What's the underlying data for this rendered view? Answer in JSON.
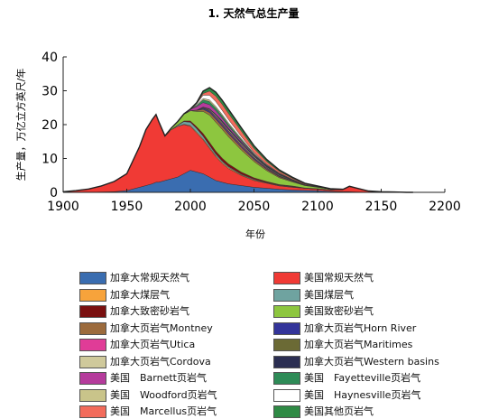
{
  "chart_data": {
    "type": "area",
    "title": "1. 天然气总生产量",
    "xlabel": "年份",
    "ylabel": "生产量，万亿立方英尺/年",
    "xlim": [
      1900,
      2200
    ],
    "ylim": [
      0,
      40
    ],
    "xticks": [
      "1900",
      "1950",
      "2000",
      "2050",
      "2100",
      "2150",
      "2200"
    ],
    "yticks": [
      "0",
      "10",
      "20",
      "30",
      "40"
    ],
    "grid": false,
    "stacked": true,
    "legend_position": "bottom",
    "x": [
      1900,
      1910,
      1920,
      1930,
      1940,
      1950,
      1960,
      1965,
      1970,
      1973,
      1975,
      1980,
      1985,
      1990,
      1995,
      2000,
      2005,
      2010,
      2015,
      2020,
      2025,
      2030,
      2040,
      2050,
      2060,
      2070,
      2080,
      2090,
      2100,
      2110,
      2120,
      2125,
      2130,
      2140,
      2150,
      2160,
      2170,
      2175
    ],
    "series": [
      {
        "name": "加拿大常规天然气",
        "color": "#3a6db0",
        "values": [
          0,
          0,
          0,
          0.1,
          0.2,
          0.5,
          1.5,
          2.0,
          2.5,
          3.0,
          3.0,
          3.5,
          4.0,
          4.5,
          5.5,
          6.5,
          6.0,
          5.5,
          4.5,
          3.5,
          3.0,
          2.5,
          2.0,
          1.5,
          1.2,
          0.9,
          0.7,
          0.6,
          0.5,
          0.3,
          0.2,
          0.2,
          0.1,
          0,
          0,
          0,
          0,
          0
        ]
      },
      {
        "name": "美国常规天然气",
        "color": "#f03a35",
        "values": [
          0.2,
          0.5,
          1.0,
          1.8,
          3.0,
          5.0,
          12.0,
          16.5,
          19.0,
          20.0,
          18.0,
          13.0,
          14.5,
          15.0,
          14.5,
          13.0,
          11.5,
          10.0,
          8.5,
          7.0,
          5.5,
          4.5,
          3.0,
          2.0,
          1.5,
          1.0,
          0.8,
          0.6,
          0.5,
          0.4,
          0.6,
          1.5,
          1.2,
          0.4,
          0.2,
          0.1,
          0,
          0
        ]
      },
      {
        "name": "加拿大煤层气",
        "color": "#f7a33b",
        "values": [
          0,
          0,
          0,
          0,
          0,
          0,
          0,
          0,
          0,
          0,
          0,
          0,
          0,
          0,
          0.1,
          0.2,
          0.3,
          0.3,
          0.3,
          0.3,
          0.3,
          0.3,
          0.2,
          0.2,
          0.1,
          0.1,
          0.1,
          0,
          0,
          0,
          0,
          0,
          0,
          0,
          0,
          0,
          0,
          0
        ]
      },
      {
        "name": "美国煤层气",
        "color": "#6fa3a0",
        "values": [
          0,
          0,
          0,
          0,
          0,
          0,
          0,
          0,
          0,
          0,
          0,
          0,
          0,
          0.3,
          0.8,
          1.0,
          1.0,
          0.8,
          0.6,
          0.5,
          0.4,
          0.3,
          0.2,
          0.2,
          0.1,
          0.1,
          0.1,
          0,
          0,
          0,
          0,
          0,
          0,
          0,
          0,
          0,
          0,
          0
        ]
      },
      {
        "name": "加拿大致密砂岩气",
        "color": "#7a1010",
        "values": [
          0,
          0,
          0,
          0,
          0,
          0,
          0,
          0,
          0,
          0,
          0,
          0,
          0,
          0.1,
          0.2,
          0.4,
          0.6,
          0.8,
          0.9,
          0.9,
          0.9,
          0.8,
          0.6,
          0.4,
          0.3,
          0.2,
          0.2,
          0.1,
          0.1,
          0.1,
          0,
          0,
          0,
          0,
          0,
          0,
          0,
          0
        ]
      },
      {
        "name": "美国致密砂岩气",
        "color": "#8dc63f",
        "values": [
          0,
          0,
          0,
          0,
          0,
          0,
          0,
          0,
          0,
          0,
          0,
          0.2,
          0.5,
          1.0,
          2.0,
          3.0,
          4.5,
          6.5,
          8.0,
          8.5,
          8.5,
          8.0,
          6.5,
          4.8,
          3.2,
          2.0,
          1.2,
          0.7,
          0.4,
          0.2,
          0.1,
          0.1,
          0,
          0,
          0,
          0,
          0,
          0
        ]
      },
      {
        "name": "加拿大页岩气Montney",
        "color": "#9c6b3d",
        "values": [
          0,
          0,
          0,
          0,
          0,
          0,
          0,
          0,
          0,
          0,
          0,
          0,
          0,
          0,
          0,
          0,
          0.3,
          0.6,
          0.8,
          0.9,
          0.9,
          0.9,
          0.8,
          0.6,
          0.4,
          0.3,
          0.2,
          0.1,
          0.1,
          0,
          0,
          0,
          0,
          0,
          0,
          0,
          0,
          0
        ]
      },
      {
        "name": "加拿大页岩气Horn River",
        "color": "#33349a",
        "values": [
          0,
          0,
          0,
          0,
          0,
          0,
          0,
          0,
          0,
          0,
          0,
          0,
          0,
          0,
          0,
          0,
          0.1,
          0.3,
          0.4,
          0.4,
          0.4,
          0.4,
          0.3,
          0.3,
          0.2,
          0.1,
          0.1,
          0,
          0,
          0,
          0,
          0,
          0,
          0,
          0,
          0,
          0,
          0
        ]
      },
      {
        "name": "加拿大页岩气Utica",
        "color": "#e03c97",
        "values": [
          0,
          0,
          0,
          0,
          0,
          0,
          0,
          0,
          0,
          0,
          0,
          0,
          0,
          0,
          0,
          0,
          0,
          0.1,
          0.2,
          0.3,
          0.3,
          0.3,
          0.3,
          0.2,
          0.2,
          0.1,
          0.1,
          0,
          0,
          0,
          0,
          0,
          0,
          0,
          0,
          0,
          0,
          0
        ]
      },
      {
        "name": "加拿大页岩气Maritimes",
        "color": "#6b6a35",
        "values": [
          0,
          0,
          0,
          0,
          0,
          0,
          0,
          0,
          0,
          0,
          0,
          0,
          0,
          0,
          0,
          0,
          0,
          0.1,
          0.1,
          0.2,
          0.2,
          0.2,
          0.2,
          0.1,
          0.1,
          0.1,
          0,
          0,
          0,
          0,
          0,
          0,
          0,
          0,
          0,
          0,
          0,
          0
        ]
      },
      {
        "name": "加拿大页岩气Cordova",
        "color": "#cfc99b",
        "values": [
          0,
          0,
          0,
          0,
          0,
          0,
          0,
          0,
          0,
          0,
          0,
          0,
          0,
          0,
          0,
          0,
          0,
          0.1,
          0.2,
          0.3,
          0.3,
          0.3,
          0.3,
          0.3,
          0.2,
          0.2,
          0.1,
          0.1,
          0,
          0,
          0,
          0,
          0,
          0,
          0,
          0,
          0,
          0
        ]
      },
      {
        "name": "加拿大页岩气Western basins",
        "color": "#2b2e52",
        "values": [
          0,
          0,
          0,
          0,
          0,
          0,
          0,
          0,
          0,
          0,
          0,
          0,
          0,
          0,
          0,
          0,
          0,
          0.1,
          0.2,
          0.3,
          0.4,
          0.4,
          0.4,
          0.3,
          0.3,
          0.2,
          0.2,
          0.1,
          0.1,
          0,
          0,
          0,
          0,
          0,
          0,
          0,
          0,
          0
        ]
      },
      {
        "name": "美国　Barnett页岩气",
        "color": "#b53b9c",
        "values": [
          0,
          0,
          0,
          0,
          0,
          0,
          0,
          0,
          0,
          0,
          0,
          0,
          0,
          0,
          0.1,
          0.4,
          1.0,
          1.3,
          1.2,
          1.0,
          0.8,
          0.6,
          0.4,
          0.2,
          0.1,
          0.1,
          0,
          0,
          0,
          0,
          0,
          0,
          0,
          0,
          0,
          0,
          0,
          0
        ]
      },
      {
        "name": "美国　Fayetteville页岩气",
        "color": "#2e8b57",
        "values": [
          0,
          0,
          0,
          0,
          0,
          0,
          0,
          0,
          0,
          0,
          0,
          0,
          0,
          0,
          0,
          0,
          0.3,
          0.8,
          0.9,
          0.8,
          0.7,
          0.6,
          0.4,
          0.2,
          0.1,
          0.1,
          0,
          0,
          0,
          0,
          0,
          0,
          0,
          0,
          0,
          0,
          0,
          0
        ]
      },
      {
        "name": "美国　Woodford页岩气",
        "color": "#c9c48a",
        "values": [
          0,
          0,
          0,
          0,
          0,
          0,
          0,
          0,
          0,
          0,
          0,
          0,
          0,
          0,
          0,
          0,
          0.2,
          0.4,
          0.5,
          0.5,
          0.4,
          0.4,
          0.3,
          0.2,
          0.1,
          0.1,
          0,
          0,
          0,
          0,
          0,
          0,
          0,
          0,
          0,
          0,
          0,
          0
        ]
      },
      {
        "name": "美国　Haynesville页岩气",
        "color": "#ffffff",
        "values": [
          0,
          0,
          0,
          0,
          0,
          0,
          0,
          0,
          0,
          0,
          0,
          0,
          0,
          0,
          0,
          0,
          0.3,
          1.0,
          1.4,
          1.4,
          1.2,
          1.0,
          0.6,
          0.3,
          0.2,
          0.1,
          0.1,
          0,
          0,
          0,
          0,
          0,
          0,
          0,
          0,
          0,
          0,
          0
        ]
      },
      {
        "name": "美国　Marcellus页岩气",
        "color": "#f26b5b",
        "values": [
          0,
          0,
          0,
          0,
          0,
          0,
          0,
          0,
          0,
          0,
          0,
          0,
          0,
          0,
          0,
          0,
          0.1,
          0.5,
          1.2,
          1.6,
          1.8,
          1.8,
          1.6,
          1.2,
          0.8,
          0.5,
          0.3,
          0.2,
          0.1,
          0,
          0,
          0,
          0,
          0,
          0,
          0,
          0,
          0
        ]
      },
      {
        "name": "美国其他页岩气",
        "color": "#2f8a45",
        "values": [
          0,
          0,
          0,
          0,
          0,
          0,
          0,
          0,
          0,
          0,
          0,
          0,
          0,
          0,
          0,
          0.1,
          0.3,
          0.7,
          1.0,
          1.2,
          1.2,
          1.2,
          1.0,
          0.8,
          0.6,
          0.4,
          0.3,
          0.2,
          0.1,
          0.1,
          0,
          0,
          0,
          0,
          0,
          0,
          0,
          0
        ]
      }
    ],
    "legend_order": [
      0,
      1,
      2,
      3,
      4,
      5,
      6,
      7,
      8,
      9,
      10,
      11,
      12,
      13,
      14,
      15,
      16,
      17
    ]
  }
}
